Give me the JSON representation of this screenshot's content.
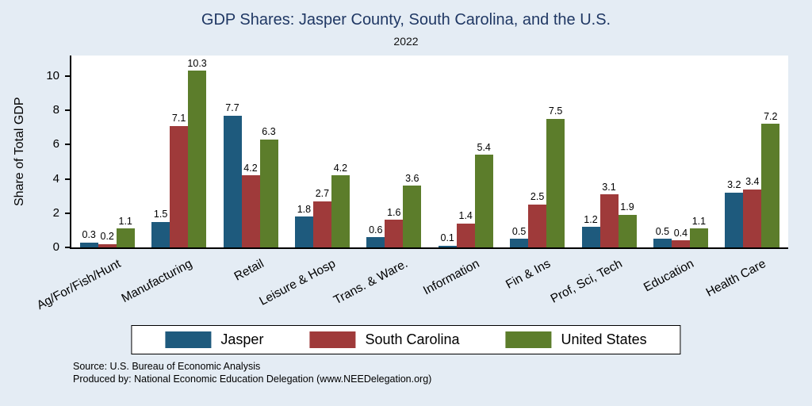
{
  "chart_data": {
    "type": "bar",
    "title": "GDP Shares: Jasper County, South Carolina, and the U.S.",
    "subtitle": "2022",
    "ylabel": "Share of Total GDP",
    "xlabel": "",
    "categories": [
      "Ag/For/Fish/Hunt",
      "Manufacturing",
      "Retail",
      "Leisure & Hosp",
      "Trans. & Ware.",
      "Information",
      "Fin & Ins",
      "Prof, Sci, Tech",
      "Education",
      "Health Care"
    ],
    "series": [
      {
        "name": "Jasper",
        "color": "#1e5a7d",
        "values": [
          0.3,
          1.5,
          7.7,
          1.8,
          0.6,
          0.1,
          0.5,
          1.2,
          0.5,
          3.2
        ]
      },
      {
        "name": "South Carolina",
        "color": "#9f3a3a",
        "values": [
          0.2,
          7.1,
          4.2,
          2.7,
          1.6,
          1.4,
          2.5,
          3.1,
          0.4,
          3.4
        ]
      },
      {
        "name": "United States",
        "color": "#5c7d2b",
        "values": [
          1.1,
          10.3,
          6.3,
          4.2,
          3.6,
          5.4,
          7.5,
          1.9,
          1.1,
          7.2
        ]
      }
    ],
    "yticks": [
      0,
      2,
      4,
      6,
      8,
      10
    ],
    "ylim": [
      0,
      11.2
    ],
    "grid": false,
    "legend_position": "bottom",
    "value_labels": true
  },
  "notes": {
    "source": "Source: U.S. Bureau of Economic Analysis",
    "produced_by": "Produced by: National Economic Education Delegation (www.NEEDelegation.org)"
  },
  "colors": {
    "background": "#e4ecf4",
    "plot_background": "#ffffff",
    "title_text": "#203864",
    "axis": "#000000"
  }
}
